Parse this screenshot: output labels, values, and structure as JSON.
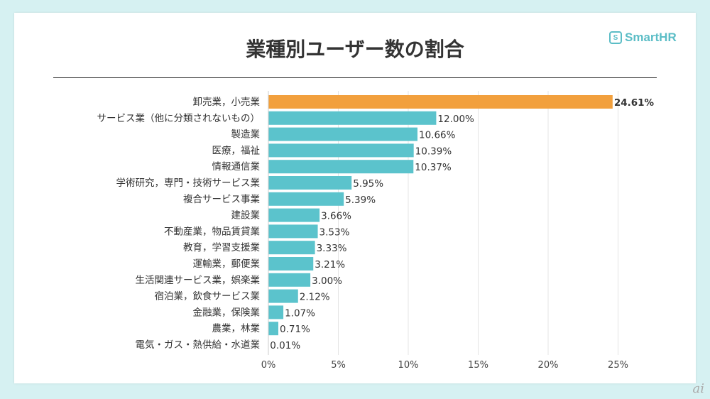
{
  "brand": "SmartHR",
  "watermark": "ai",
  "chart_data": {
    "type": "bar",
    "orientation": "horizontal",
    "title": "業種別ユーザー数の割合",
    "categories": [
      "卸売業，小売業",
      "サービス業（他に分類されないもの）",
      "製造業",
      "医療，福祉",
      "情報通信業",
      "学術研究，専門・技術サービス業",
      "複合サービス事業",
      "建設業",
      "不動産業，物品賃貸業",
      "教育，学習支援業",
      "運輸業，郵便業",
      "生活関連サービス業，娯楽業",
      "宿泊業，飲食サービス業",
      "金融業，保険業",
      "農業，林業",
      "電気・ガス・熱供給・水道業"
    ],
    "values": [
      24.61,
      12.0,
      10.66,
      10.39,
      10.37,
      5.95,
      5.39,
      3.66,
      3.53,
      3.33,
      3.21,
      3.0,
      2.12,
      1.07,
      0.71,
      0.01
    ],
    "value_labels": [
      "24.61%",
      "12.00%",
      "10.66%",
      "10.39%",
      "10.37%",
      "5.95%",
      "5.39%",
      "3.66%",
      "3.53%",
      "3.33%",
      "3.21%",
      "3.00%",
      "2.12%",
      "1.07%",
      "0.71%",
      "0.01%"
    ],
    "xticks": [
      "0%",
      "5%",
      "10%",
      "15%",
      "20%",
      "25%"
    ],
    "xlim": [
      0,
      27
    ],
    "grid": true,
    "colors": {
      "highlight": "#f2a03d",
      "default": "#5bc3cc"
    }
  }
}
